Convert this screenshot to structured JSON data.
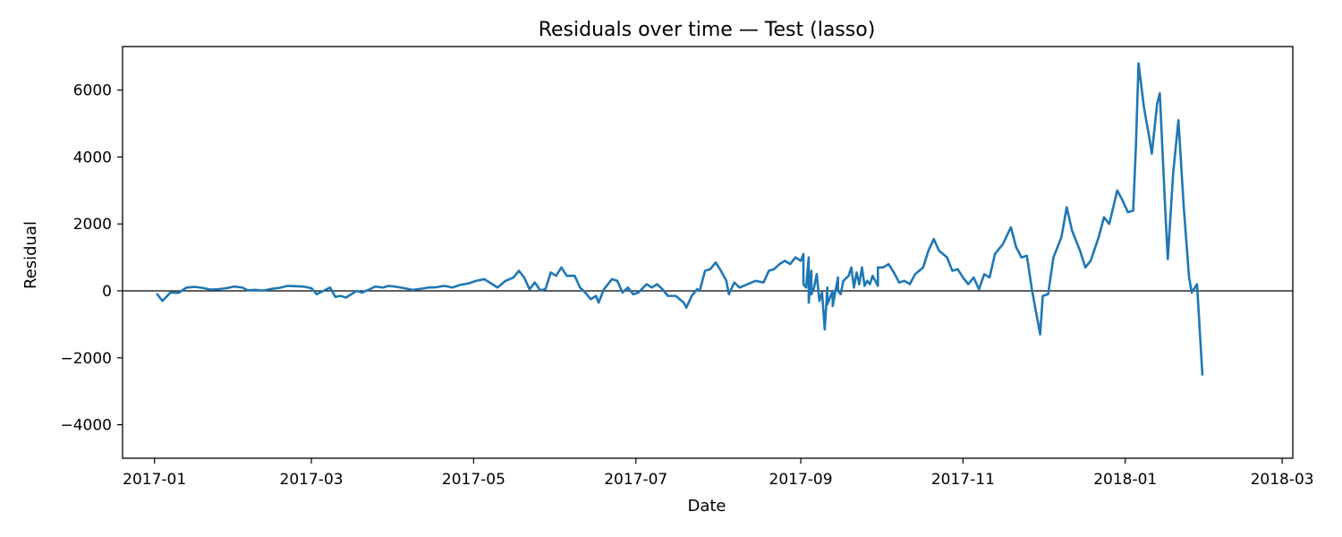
{
  "chart_data": {
    "type": "line",
    "title": "Residuals over time — Test (lasso)",
    "xlabel": "Date",
    "ylabel": "Residual",
    "x_ticks": [
      "2017-01",
      "2017-03",
      "2017-05",
      "2017-07",
      "2017-09",
      "2017-11",
      "2018-01",
      "2018-03"
    ],
    "y_ticks": [
      -4000,
      -2000,
      0,
      2000,
      4000,
      6000
    ],
    "xlim": [
      "2016-12-20",
      "2018-03-05"
    ],
    "ylim": [
      -5000,
      7300
    ],
    "grid": false,
    "reference_line": 0,
    "colors": {
      "series": "#1f77b4",
      "reference_line": "#000000"
    },
    "series": [
      {
        "points": [
          [
            "2017-01-02",
            -100
          ],
          [
            "2017-01-04",
            -300
          ],
          [
            "2017-01-07",
            -50
          ],
          [
            "2017-01-10",
            -60
          ],
          [
            "2017-01-13",
            100
          ],
          [
            "2017-01-16",
            120
          ],
          [
            "2017-01-19",
            90
          ],
          [
            "2017-01-22",
            40
          ],
          [
            "2017-01-25",
            50
          ],
          [
            "2017-01-28",
            80
          ],
          [
            "2017-01-31",
            130
          ],
          [
            "2017-02-03",
            100
          ],
          [
            "2017-02-05",
            20
          ],
          [
            "2017-02-08",
            30
          ],
          [
            "2017-02-11",
            10
          ],
          [
            "2017-02-14",
            60
          ],
          [
            "2017-02-17",
            90
          ],
          [
            "2017-02-20",
            150
          ],
          [
            "2017-02-23",
            140
          ],
          [
            "2017-02-26",
            130
          ],
          [
            "2017-03-01",
            80
          ],
          [
            "2017-03-03",
            -100
          ],
          [
            "2017-03-05",
            -20
          ],
          [
            "2017-03-08",
            100
          ],
          [
            "2017-03-10",
            -180
          ],
          [
            "2017-03-12",
            -150
          ],
          [
            "2017-03-14",
            -200
          ],
          [
            "2017-03-16",
            -100
          ],
          [
            "2017-03-18",
            0
          ],
          [
            "2017-03-20",
            -50
          ],
          [
            "2017-03-23",
            50
          ],
          [
            "2017-03-25",
            130
          ],
          [
            "2017-03-28",
            100
          ],
          [
            "2017-03-30",
            150
          ],
          [
            "2017-04-02",
            120
          ],
          [
            "2017-04-05",
            80
          ],
          [
            "2017-04-08",
            30
          ],
          [
            "2017-04-11",
            60
          ],
          [
            "2017-04-14",
            100
          ],
          [
            "2017-04-17",
            110
          ],
          [
            "2017-04-20",
            150
          ],
          [
            "2017-04-23",
            100
          ],
          [
            "2017-04-26",
            180
          ],
          [
            "2017-04-29",
            220
          ],
          [
            "2017-05-02",
            300
          ],
          [
            "2017-05-05",
            350
          ],
          [
            "2017-05-07",
            250
          ],
          [
            "2017-05-10",
            100
          ],
          [
            "2017-05-13",
            300
          ],
          [
            "2017-05-16",
            400
          ],
          [
            "2017-05-18",
            600
          ],
          [
            "2017-05-20",
            400
          ],
          [
            "2017-05-22",
            50
          ],
          [
            "2017-05-24",
            250
          ],
          [
            "2017-05-26",
            20
          ],
          [
            "2017-05-28",
            50
          ],
          [
            "2017-05-30",
            550
          ],
          [
            "2017-06-01",
            450
          ],
          [
            "2017-06-03",
            700
          ],
          [
            "2017-06-05",
            450
          ],
          [
            "2017-06-08",
            450
          ],
          [
            "2017-06-10",
            100
          ],
          [
            "2017-06-12",
            -50
          ],
          [
            "2017-06-14",
            -250
          ],
          [
            "2017-06-16",
            -150
          ],
          [
            "2017-06-17",
            -350
          ],
          [
            "2017-06-19",
            50
          ],
          [
            "2017-06-22",
            350
          ],
          [
            "2017-06-24",
            300
          ],
          [
            "2017-06-26",
            -50
          ],
          [
            "2017-06-28",
            100
          ],
          [
            "2017-06-30",
            -100
          ],
          [
            "2017-07-02",
            -50
          ],
          [
            "2017-07-05",
            200
          ],
          [
            "2017-07-07",
            100
          ],
          [
            "2017-07-09",
            200
          ],
          [
            "2017-07-11",
            50
          ],
          [
            "2017-07-13",
            -150
          ],
          [
            "2017-07-16",
            -150
          ],
          [
            "2017-07-19",
            -350
          ],
          [
            "2017-07-20",
            -500
          ],
          [
            "2017-07-22",
            -150
          ],
          [
            "2017-07-24",
            50
          ],
          [
            "2017-07-25",
            0
          ],
          [
            "2017-07-27",
            600
          ],
          [
            "2017-07-29",
            650
          ],
          [
            "2017-07-31",
            850
          ],
          [
            "2017-08-02",
            600
          ],
          [
            "2017-08-04",
            300
          ],
          [
            "2017-08-05",
            -100
          ],
          [
            "2017-08-07",
            250
          ],
          [
            "2017-08-09",
            100
          ],
          [
            "2017-08-12",
            200
          ],
          [
            "2017-08-15",
            300
          ],
          [
            "2017-08-18",
            250
          ],
          [
            "2017-08-20",
            600
          ],
          [
            "2017-08-22",
            650
          ],
          [
            "2017-08-24",
            800
          ],
          [
            "2017-08-26",
            900
          ],
          [
            "2017-08-28",
            800
          ],
          [
            "2017-08-30",
            1000
          ],
          [
            "2017-09-01",
            900
          ],
          [
            "2017-09-02",
            1100
          ],
          [
            "2017-09-04",
            1000
          ],
          [
            "2017-09-05",
            600
          ],
          [
            "2017-09-07",
            500
          ],
          [
            "2017-09-09",
            -50
          ],
          [
            "2017-09-11",
            100
          ],
          [
            "2017-09-13",
            0
          ],
          [
            "2017-09-15",
            400
          ],
          [
            "2017-09-17",
            300
          ],
          [
            "2017-09-20",
            700
          ],
          [
            "2017-09-22",
            550
          ],
          [
            "2017-09-24",
            700
          ],
          [
            "2017-09-26",
            300
          ],
          [
            "2017-09-28",
            450
          ],
          [
            "2017-09-30",
            150
          ],
          [
            "2017-09-02",
            200
          ],
          [
            "2017-09-03",
            100
          ],
          [
            "2017-09-04",
            -350
          ],
          [
            "2017-09-05",
            -100
          ],
          [
            "2017-09-06",
            100
          ],
          [
            "2017-09-08",
            -300
          ],
          [
            "2017-09-10",
            -1150
          ],
          [
            "2017-09-11",
            -400
          ],
          [
            "2017-09-13",
            -450
          ],
          [
            "2017-09-15",
            0
          ],
          [
            "2017-09-16",
            -100
          ],
          [
            "2017-09-19",
            450
          ],
          [
            "2017-09-21",
            100
          ],
          [
            "2017-09-23",
            200
          ],
          [
            "2017-09-25",
            150
          ],
          [
            "2017-09-27",
            200
          ],
          [
            "2017-09-30",
            700
          ],
          [
            "2017-10-02",
            700
          ],
          [
            "2017-10-04",
            800
          ],
          [
            "2017-10-06",
            550
          ],
          [
            "2017-10-08",
            250
          ],
          [
            "2017-10-10",
            300
          ],
          [
            "2017-10-12",
            200
          ],
          [
            "2017-10-14",
            500
          ],
          [
            "2017-10-17",
            700
          ],
          [
            "2017-10-19",
            1200
          ],
          [
            "2017-10-21",
            1550
          ],
          [
            "2017-10-23",
            1200
          ],
          [
            "2017-10-26",
            1000
          ],
          [
            "2017-10-28",
            600
          ],
          [
            "2017-10-30",
            650
          ],
          [
            "2017-11-01",
            400
          ],
          [
            "2017-11-03",
            200
          ],
          [
            "2017-11-05",
            400
          ],
          [
            "2017-11-07",
            50
          ],
          [
            "2017-11-09",
            500
          ],
          [
            "2017-11-11",
            400
          ],
          [
            "2017-11-13",
            1100
          ],
          [
            "2017-11-16",
            1400
          ],
          [
            "2017-11-19",
            1900
          ],
          [
            "2017-11-21",
            1300
          ],
          [
            "2017-11-23",
            1000
          ],
          [
            "2017-11-25",
            1050
          ],
          [
            "2017-11-27",
            0
          ],
          [
            "2017-11-30",
            -1300
          ],
          [
            "2017-12-01",
            -150
          ],
          [
            "2017-12-03",
            -100
          ],
          [
            "2017-12-05",
            1000
          ],
          [
            "2017-12-08",
            1600
          ],
          [
            "2017-12-10",
            2500
          ],
          [
            "2017-12-12",
            1800
          ],
          [
            "2017-12-15",
            1200
          ],
          [
            "2017-12-17",
            700
          ],
          [
            "2017-12-19",
            900
          ],
          [
            "2017-12-22",
            1600
          ],
          [
            "2017-12-24",
            2200
          ],
          [
            "2017-12-26",
            2000
          ],
          [
            "2017-12-29",
            3000
          ],
          [
            "2017-12-31",
            2700
          ],
          [
            "2018-01-02",
            2350
          ],
          [
            "2018-01-04",
            2400
          ],
          [
            "2018-01-05",
            4300
          ],
          [
            "2018-01-06",
            6800
          ],
          [
            "2018-01-08",
            5500
          ],
          [
            "2018-01-10",
            4600
          ],
          [
            "2018-01-11",
            4100
          ],
          [
            "2018-01-13",
            5600
          ],
          [
            "2018-01-14",
            5900
          ],
          [
            "2018-01-16",
            2500
          ],
          [
            "2018-01-17",
            950
          ],
          [
            "2018-01-19",
            3500
          ],
          [
            "2018-01-21",
            5100
          ],
          [
            "2018-01-23",
            2500
          ],
          [
            "2018-01-25",
            400
          ],
          [
            "2018-01-26",
            -50
          ],
          [
            "2018-01-28",
            200
          ],
          [
            "2018-01-30",
            -2500
          ]
        ]
      }
    ]
  }
}
